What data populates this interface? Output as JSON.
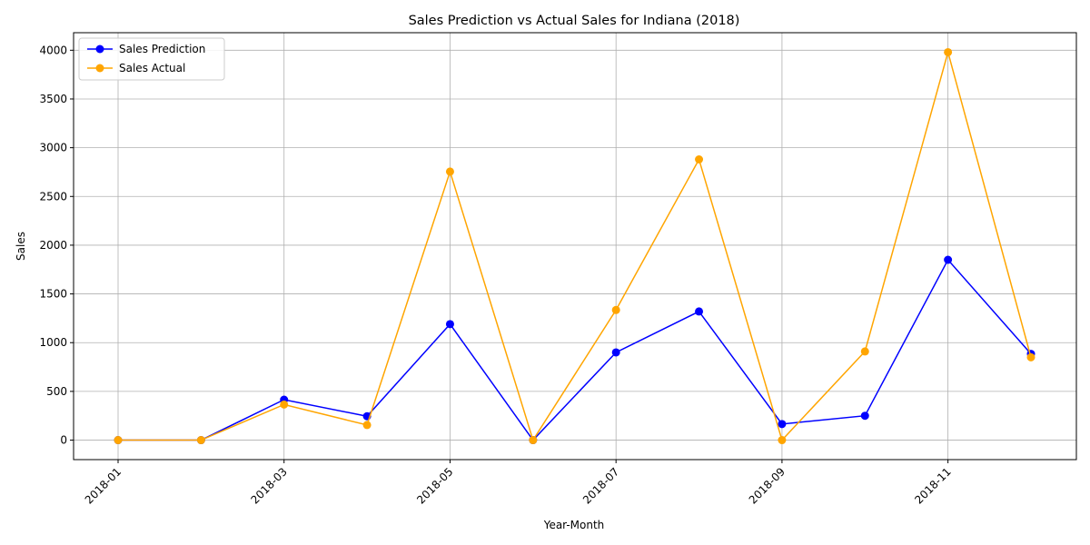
{
  "chart_data": {
    "type": "line",
    "title": "Sales Prediction vs Actual Sales for Indiana (2018)",
    "xlabel": "Year-Month",
    "ylabel": "Sales",
    "x": [
      "2018-01",
      "2018-02",
      "2018-03",
      "2018-04",
      "2018-05",
      "2018-06",
      "2018-07",
      "2018-08",
      "2018-09",
      "2018-10",
      "2018-11",
      "2018-12"
    ],
    "x_tick_labels": [
      "2018-01",
      "2018-03",
      "2018-05",
      "2018-07",
      "2018-09",
      "2018-11"
    ],
    "y_ticks": [
      0,
      500,
      1000,
      1500,
      2000,
      2500,
      3000,
      3500,
      4000
    ],
    "ylim": [
      -200,
      4180
    ],
    "grid": true,
    "legend_position": "top-left",
    "series": [
      {
        "name": "Sales Prediction",
        "color": "#0000ff",
        "values": [
          0,
          0,
          415,
          245,
          1190,
          0,
          900,
          1320,
          165,
          250,
          1850,
          885
        ]
      },
      {
        "name": "Sales Actual",
        "color": "#ffa500",
        "values": [
          0,
          0,
          365,
          155,
          2755,
          0,
          1335,
          2880,
          0,
          910,
          3980,
          850
        ]
      }
    ]
  }
}
